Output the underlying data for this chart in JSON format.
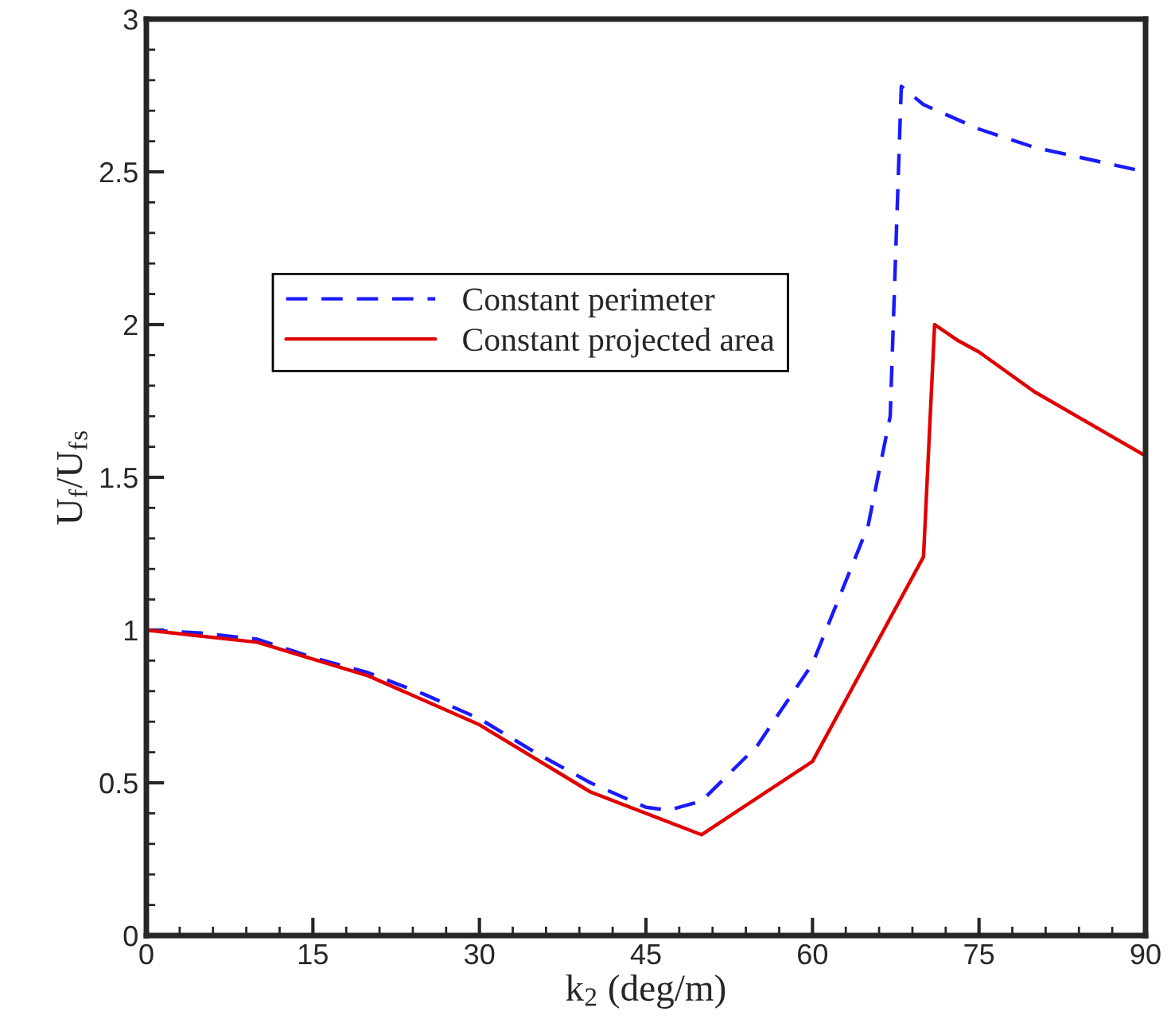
{
  "chart_data": {
    "type": "line",
    "xlabel": "k$_{2}$ (deg/m)",
    "ylabel": "U$_{f}$/U$_{f}$$_{s}$",
    "xlim": [
      0,
      90
    ],
    "xticks": [
      0,
      15,
      30,
      45,
      60,
      75,
      90
    ],
    "ylim": [
      0,
      3
    ],
    "yticks": [
      0,
      0.5,
      1,
      1.5,
      2,
      2.5,
      3
    ],
    "grid": false,
    "legend": "top left",
    "marker": "none",
    "series": [
      {
        "name": "Constant perimeter",
        "color": "#1a1aff",
        "line_style": "dashed",
        "x": [
          0,
          5,
          10,
          15,
          20,
          25,
          30,
          35,
          40,
          45,
          47,
          50,
          55,
          60,
          65,
          67,
          68,
          70,
          75,
          80,
          90
        ],
        "values": [
          1.0,
          0.99,
          0.97,
          0.91,
          0.86,
          0.79,
          0.71,
          0.6,
          0.5,
          0.42,
          0.41,
          0.44,
          0.62,
          0.89,
          1.34,
          1.7,
          2.78,
          2.72,
          2.64,
          2.58,
          2.5
        ]
      },
      {
        "name": "Constant projected area",
        "color": "#e00000",
        "line_style": "solid",
        "x": [
          0,
          10,
          20,
          30,
          40,
          50,
          60,
          70,
          71,
          73,
          75,
          80,
          90
        ],
        "values": [
          1.0,
          0.96,
          0.85,
          0.69,
          0.47,
          0.33,
          0.57,
          1.24,
          2.0,
          1.95,
          1.91,
          1.78,
          1.57
        ]
      }
    ]
  }
}
